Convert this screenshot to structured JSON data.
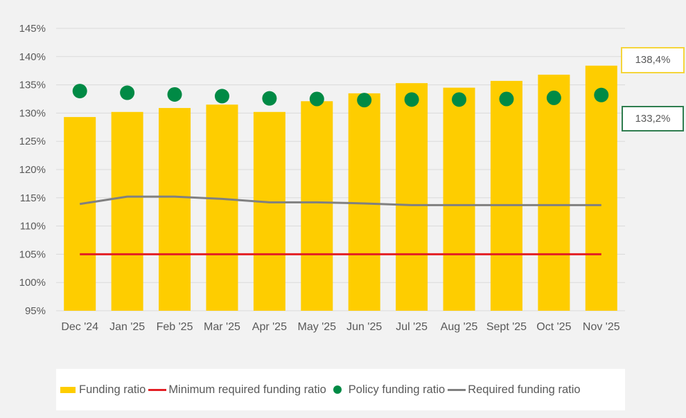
{
  "chart_data": {
    "type": "bar",
    "title": "",
    "xlabel": "",
    "ylabel": "",
    "ylim": [
      95,
      145
    ],
    "yticks": [
      95,
      100,
      105,
      110,
      115,
      120,
      125,
      130,
      135,
      140,
      145
    ],
    "ytick_labels": [
      "95%",
      "100%",
      "105%",
      "110%",
      "115%",
      "120%",
      "125%",
      "130%",
      "135%",
      "140%",
      "145%"
    ],
    "grid": true,
    "legend_position": "bottom",
    "categories": [
      "Dec '24",
      "Jan '25",
      "Feb '25",
      "Mar '25",
      "Apr '25",
      "May '25",
      "Jun '25",
      "Jul '25",
      "Aug '25",
      "Sept '25",
      "Oct '25",
      "Nov '25"
    ],
    "series": [
      {
        "name": "Funding ratio",
        "kind": "bar",
        "color": "#fecd00",
        "values": [
          129.3,
          130.2,
          130.9,
          131.5,
          130.2,
          132.1,
          133.5,
          135.3,
          134.5,
          135.7,
          136.8,
          138.4
        ]
      },
      {
        "name": "Minimum required funding ratio",
        "kind": "line",
        "color": "#e31e24",
        "values": [
          105,
          105,
          105,
          105,
          105,
          105,
          105,
          105,
          105,
          105,
          105,
          105
        ]
      },
      {
        "name": "Policy funding ratio",
        "kind": "dot",
        "color": "#008a45",
        "values": [
          133.9,
          133.6,
          133.3,
          133.0,
          132.6,
          132.5,
          132.3,
          132.4,
          132.4,
          132.5,
          132.7,
          133.2
        ]
      },
      {
        "name": "Required funding ratio",
        "kind": "line",
        "color": "#808080",
        "values": [
          113.9,
          115.2,
          115.2,
          114.8,
          114.2,
          114.2,
          114.0,
          113.7,
          113.7,
          113.7,
          113.7,
          113.7
        ]
      }
    ],
    "annotations": {
      "funding_ratio_latest": "138,4%",
      "policy_ratio_latest": "133,2%"
    }
  },
  "legend": {
    "funding_ratio": "Funding ratio",
    "minimum_required": "Minimum required funding ratio",
    "policy_ratio": "Policy funding ratio",
    "required_ratio": "Required funding ratio"
  }
}
